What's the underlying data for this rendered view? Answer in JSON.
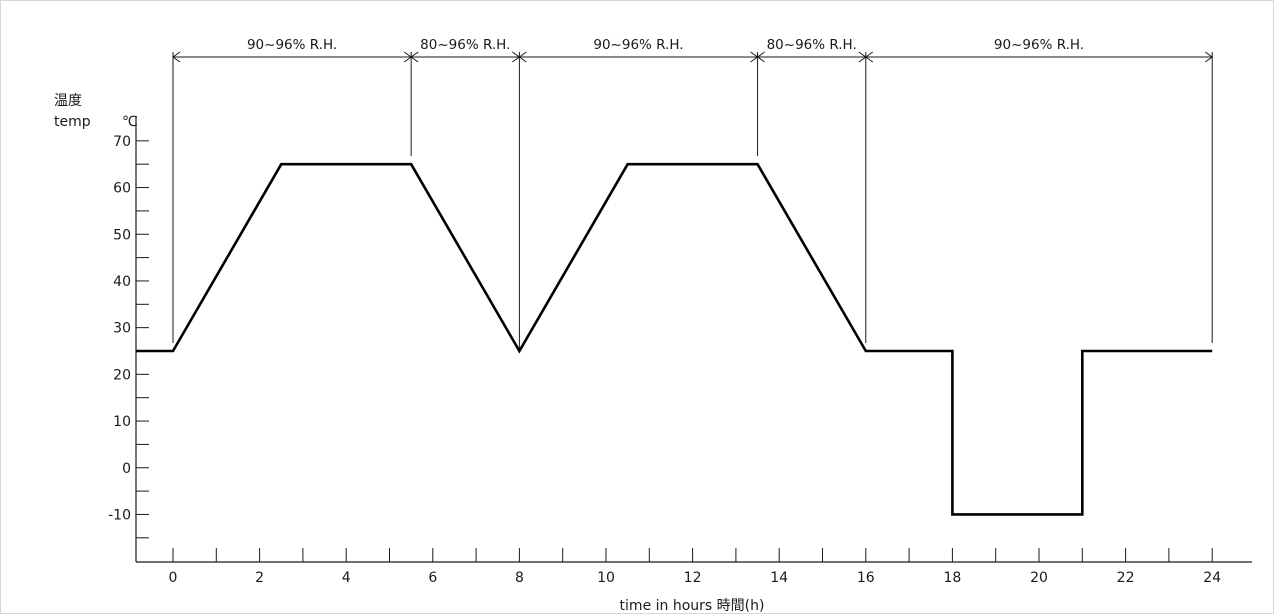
{
  "chart_data": {
    "type": "line",
    "title": "",
    "xlabel": "time in hours 時間(h)",
    "ylabel_jp": "温度",
    "ylabel_en": "temp",
    "ylabel_unit": "℃",
    "xlim": [
      -0.85,
      25
    ],
    "ylim": [
      -20,
      74
    ],
    "xticks_major": [
      0,
      2,
      4,
      6,
      8,
      10,
      12,
      14,
      16,
      18,
      20,
      22,
      24
    ],
    "xticks_minor": [
      1,
      3,
      5,
      7,
      9,
      11,
      13,
      15,
      17,
      19,
      21,
      23
    ],
    "yticks_major": [
      -10,
      0,
      10,
      20,
      30,
      40,
      50,
      60,
      70
    ],
    "yticks_minor": [
      -15,
      -5,
      5,
      15,
      25,
      35,
      45,
      55,
      65
    ],
    "grid": false,
    "series": [
      {
        "x": [
          -0.85,
          0,
          2.5,
          5.5,
          8,
          10.5,
          13.5,
          16,
          18,
          18,
          21,
          21,
          24
        ],
        "y": [
          25,
          25,
          65,
          65,
          25,
          65,
          65,
          25,
          25,
          -10,
          -10,
          25,
          25
        ]
      }
    ],
    "humidity_markers": [
      0,
      5.5,
      8,
      13.5,
      16,
      24
    ],
    "humidity_spans": [
      {
        "from": 0,
        "to": 5.5,
        "label": "90~96% R.H."
      },
      {
        "from": 5.5,
        "to": 8,
        "label": "80~96% R.H."
      },
      {
        "from": 8,
        "to": 13.5,
        "label": "90~96% R.H."
      },
      {
        "from": 13.5,
        "to": 16,
        "label": "80~96% R.H."
      },
      {
        "from": 16,
        "to": 24,
        "label": "90~96% R.H."
      }
    ]
  },
  "colors": {
    "line": "#000000",
    "axis": "#1a1a1a",
    "text": "#1a1a1a",
    "background": "#ffffff"
  }
}
